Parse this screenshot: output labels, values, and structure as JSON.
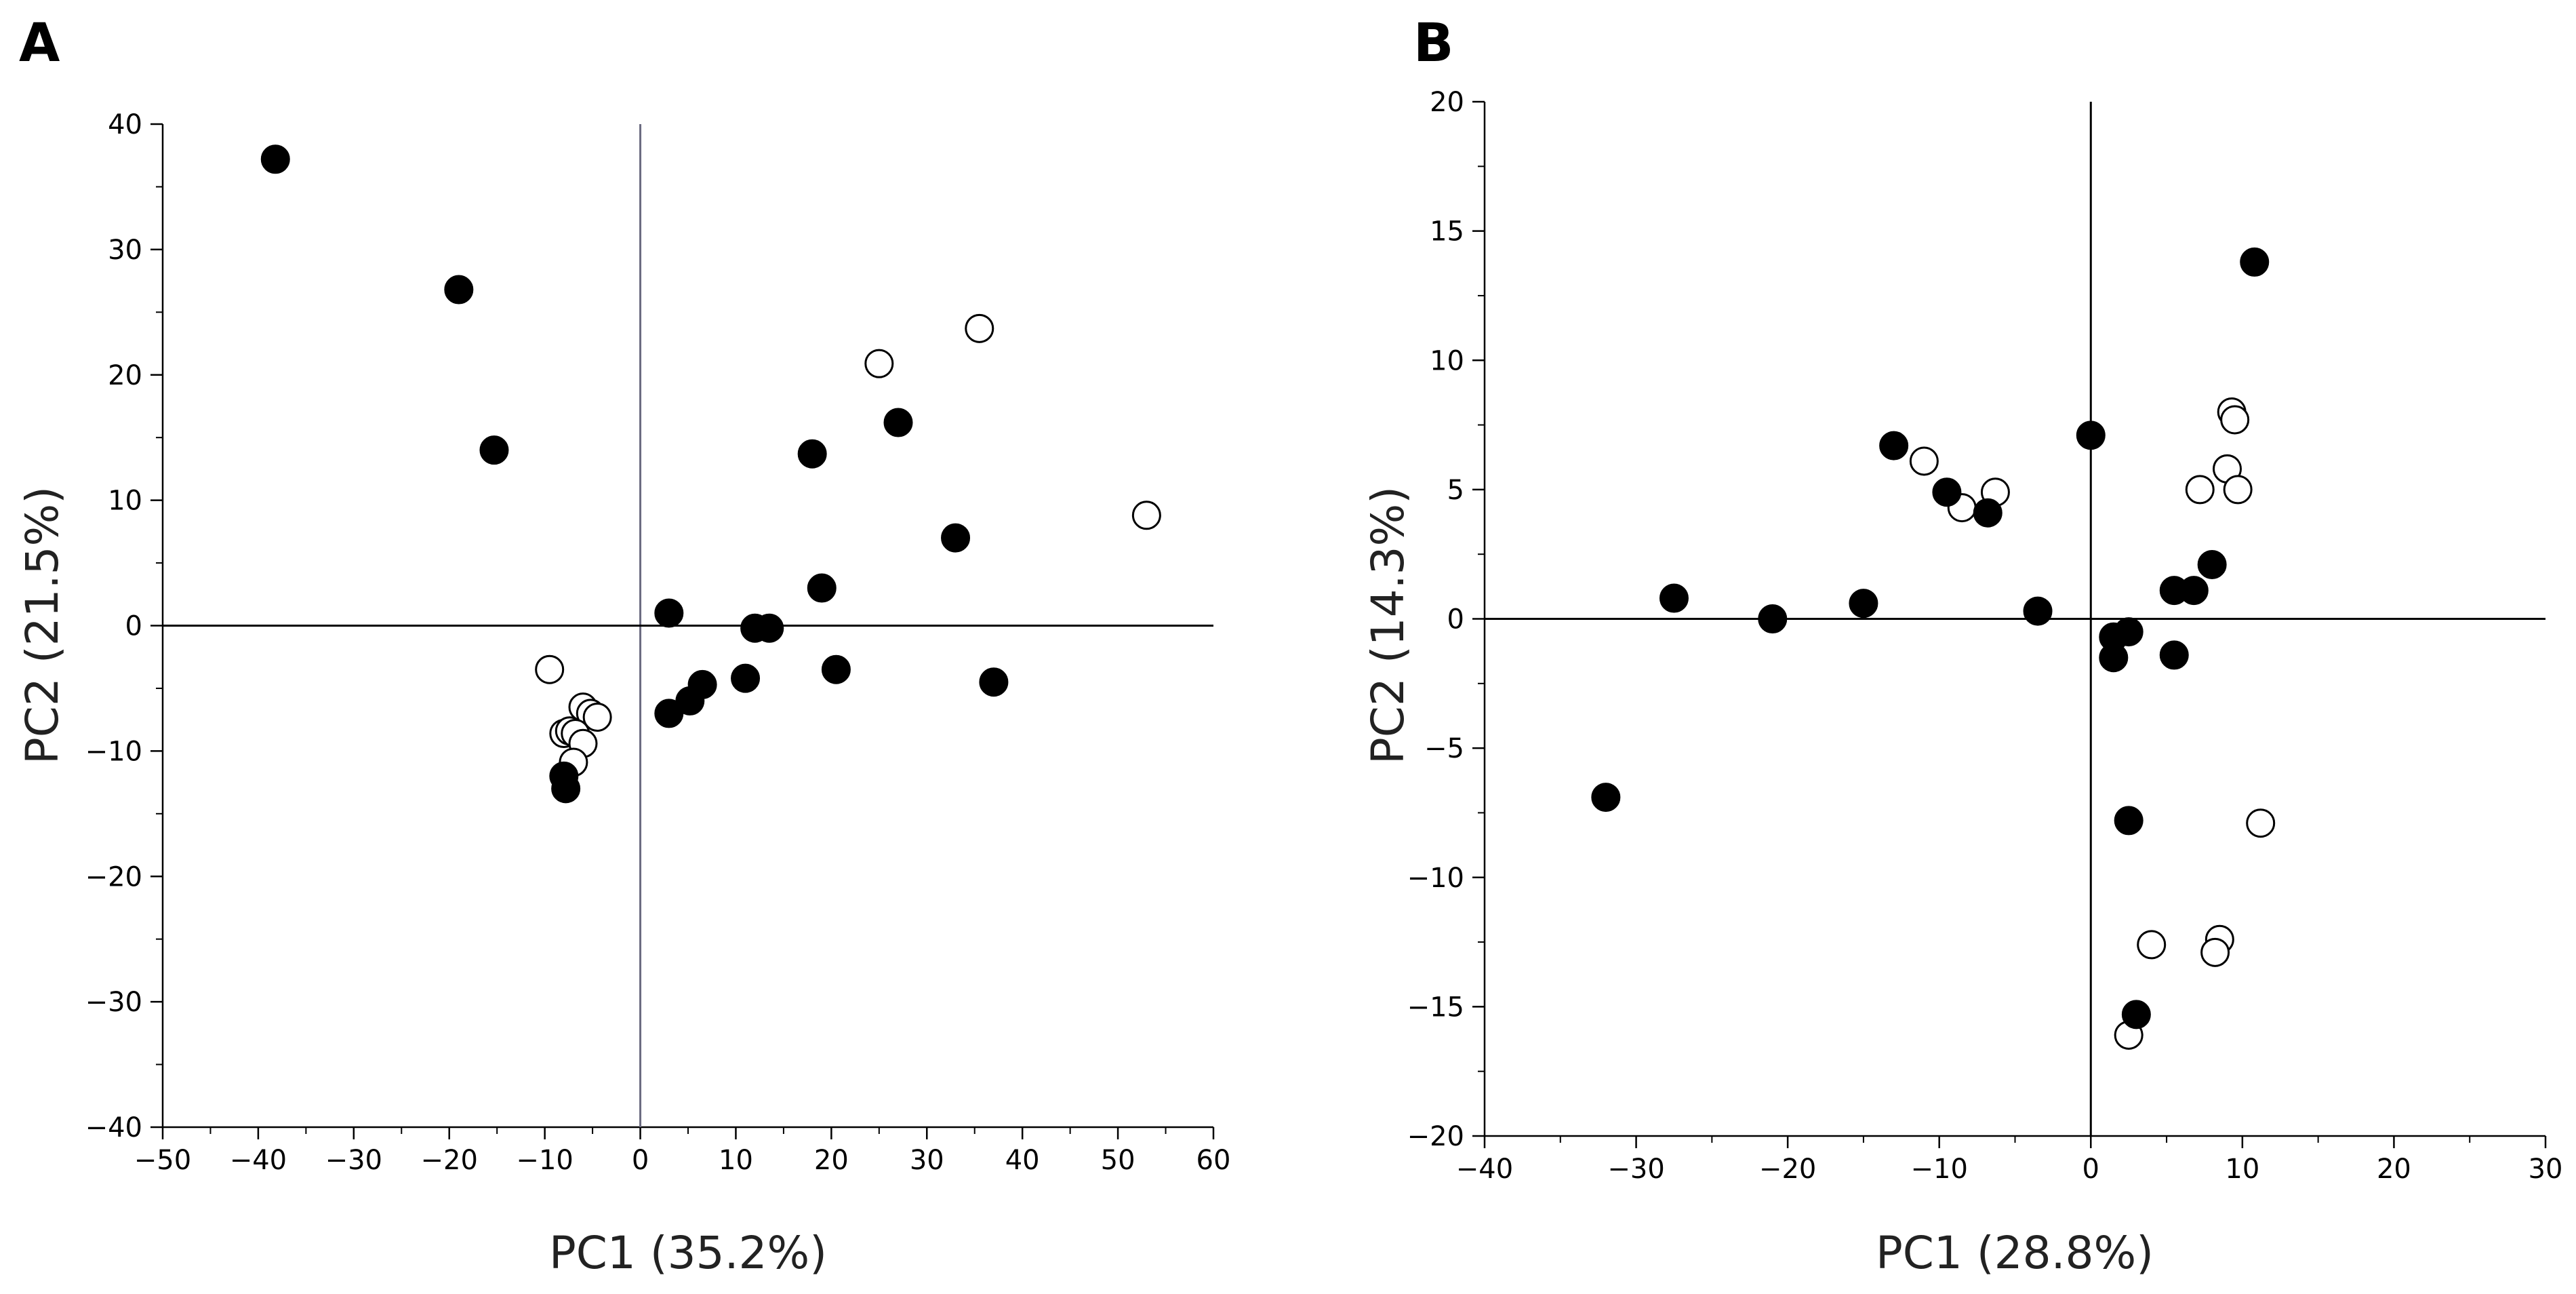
{
  "figure": {
    "colors": {
      "filled": "#000000",
      "open_fill": "#ffffff",
      "stroke": "#000000",
      "vline_a": "#6b6b80"
    }
  },
  "chart_data": [
    {
      "panel": "A",
      "type": "scatter",
      "xlabel": "PC1 (35.2%)",
      "ylabel": "PC2 (21.5%)",
      "xlim": [
        -50,
        60
      ],
      "ylim": [
        -40,
        40
      ],
      "xticks": [
        -50,
        -40,
        -30,
        -20,
        -10,
        0,
        10,
        20,
        30,
        40,
        50,
        60
      ],
      "yticks": [
        -40,
        -30,
        -20,
        -10,
        0,
        10,
        20,
        30,
        40
      ],
      "series": [
        {
          "name": "filled",
          "points": [
            [
              -38.2,
              37.2
            ],
            [
              -19,
              26.8
            ],
            [
              -15.3,
              14
            ],
            [
              -8,
              -12
            ],
            [
              -7.8,
              -13
            ],
            [
              3,
              1
            ],
            [
              3,
              -7
            ],
            [
              5.2,
              -6
            ],
            [
              6.5,
              -4.7
            ],
            [
              11,
              -4.2
            ],
            [
              12,
              -0.2
            ],
            [
              13.5,
              -0.2
            ],
            [
              18,
              13.7
            ],
            [
              19,
              3
            ],
            [
              20.5,
              -3.5
            ],
            [
              27,
              16.2
            ],
            [
              33,
              7
            ],
            [
              37,
              -4.5
            ]
          ]
        },
        {
          "name": "open",
          "points": [
            [
              -9.5,
              -3.5
            ],
            [
              -6,
              -6.5
            ],
            [
              -5.2,
              -7
            ],
            [
              -4.5,
              -7.3
            ],
            [
              -8,
              -8.6
            ],
            [
              -7.4,
              -8.4
            ],
            [
              -6.8,
              -8.6
            ],
            [
              -6,
              -9.4
            ],
            [
              -7,
              -10.9
            ],
            [
              25,
              20.9
            ],
            [
              35.5,
              23.7
            ],
            [
              53,
              8.8
            ]
          ]
        }
      ]
    },
    {
      "panel": "B",
      "type": "scatter",
      "xlabel": "PC1 (28.8%)",
      "ylabel": "PC2 (14.3%)",
      "xlim": [
        -40,
        30
      ],
      "ylim": [
        -20,
        20
      ],
      "xticks": [
        -40,
        -30,
        -20,
        -10,
        0,
        10,
        20,
        30
      ],
      "yticks": [
        -20,
        -15,
        -10,
        -5,
        0,
        5,
        10,
        15,
        20
      ],
      "series": [
        {
          "name": "filled",
          "points": [
            [
              -32,
              -6.9
            ],
            [
              -27.5,
              0.8
            ],
            [
              -21,
              0
            ],
            [
              -15,
              0.6
            ],
            [
              -13,
              6.7
            ],
            [
              -9.5,
              4.9
            ],
            [
              -6.8,
              4.1
            ],
            [
              -3.5,
              0.3
            ],
            [
              0,
              7.1
            ],
            [
              1.5,
              -0.7
            ],
            [
              2.5,
              -0.5
            ],
            [
              1.5,
              -1.5
            ],
            [
              2.5,
              -7.8
            ],
            [
              3,
              -15.3
            ],
            [
              5.5,
              1.1
            ],
            [
              6.8,
              1.1
            ],
            [
              8,
              2.1
            ],
            [
              5.5,
              -1.4
            ],
            [
              10.8,
              13.8
            ]
          ]
        },
        {
          "name": "open",
          "points": [
            [
              -11,
              6.1
            ],
            [
              -8.5,
              4.3
            ],
            [
              -6.3,
              4.9
            ],
            [
              7.2,
              5
            ],
            [
              9,
              5.8
            ],
            [
              9.3,
              8
            ],
            [
              9.5,
              7.7
            ],
            [
              9.7,
              5
            ],
            [
              11.2,
              -7.9
            ],
            [
              4,
              -12.6
            ],
            [
              8.5,
              -12.4
            ],
            [
              8.2,
              -12.9
            ],
            [
              2.5,
              -16.1
            ]
          ]
        }
      ]
    }
  ]
}
